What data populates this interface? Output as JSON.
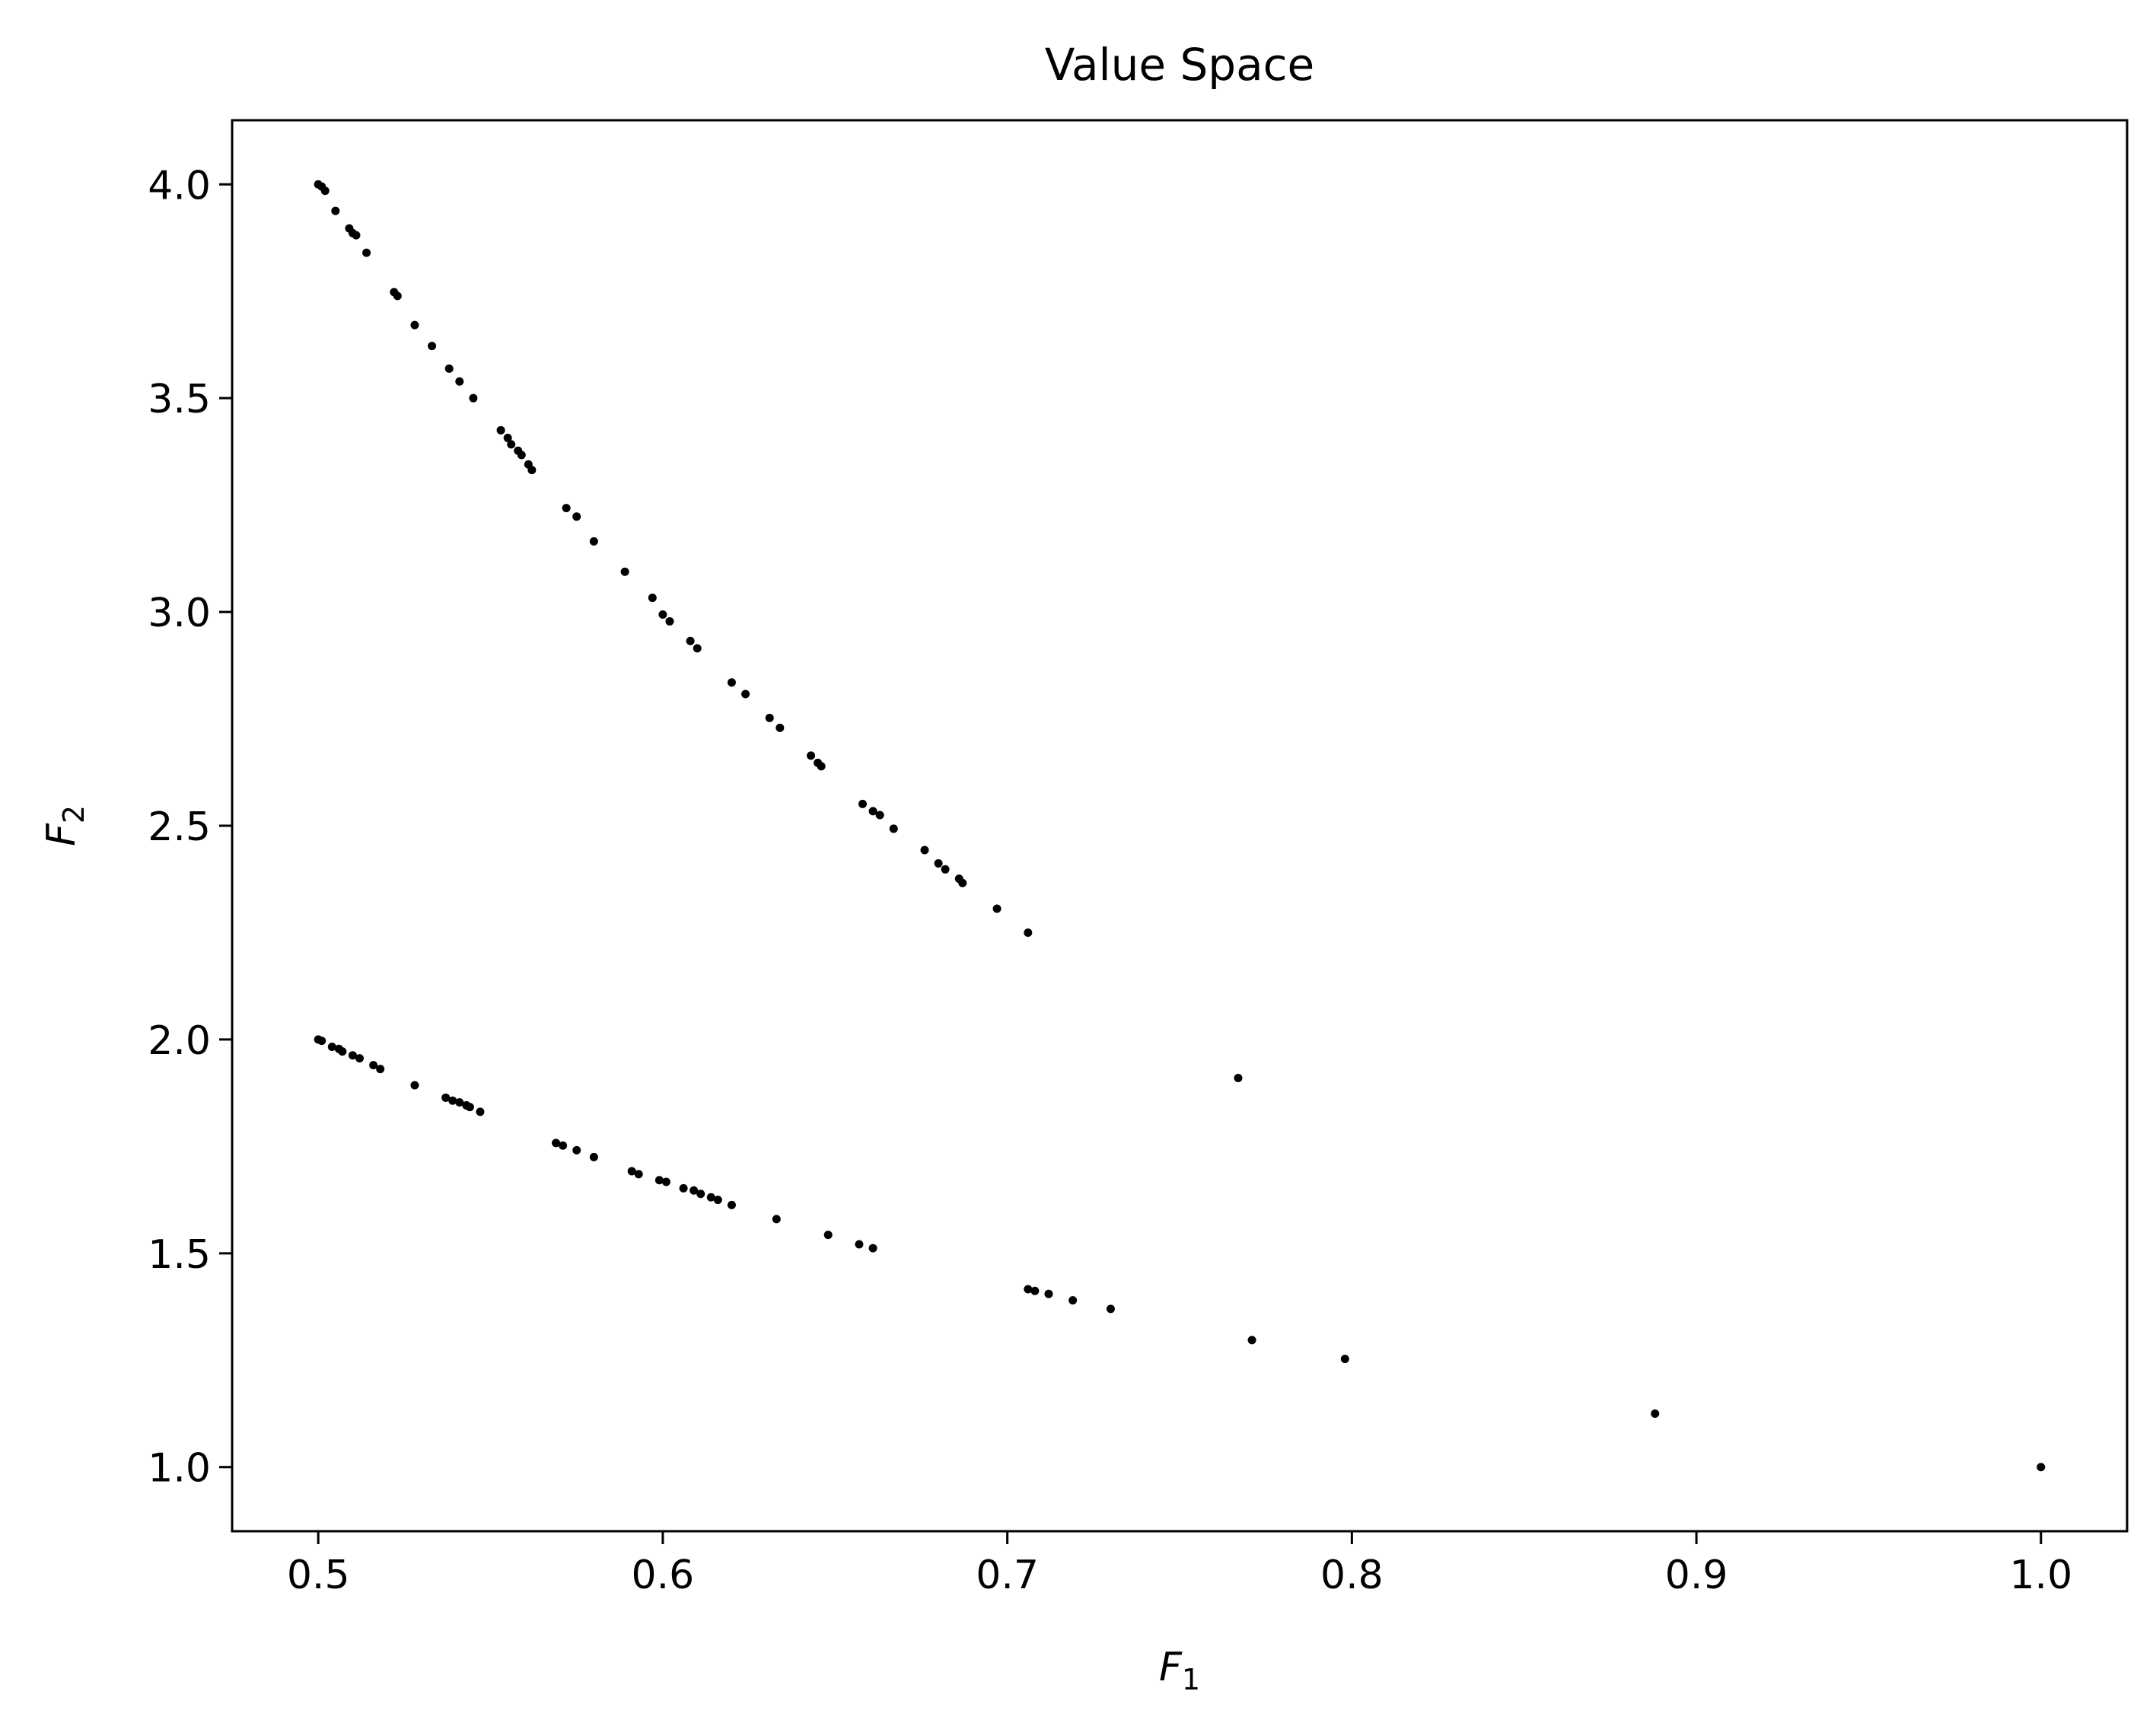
{
  "chart_data": {
    "type": "scatter",
    "title": "Value Space",
    "xlabel": "F",
    "xlabel_sub": "1",
    "ylabel": "F",
    "ylabel_sub": "2",
    "xlim": [
      0.475,
      1.025
    ],
    "ylim": [
      0.85,
      4.15
    ],
    "xticks": [
      {
        "value": 0.5,
        "label": "0.5"
      },
      {
        "value": 0.6,
        "label": "0.6"
      },
      {
        "value": 0.7,
        "label": "0.7"
      },
      {
        "value": 0.8,
        "label": "0.8"
      },
      {
        "value": 0.9,
        "label": "0.9"
      },
      {
        "value": 1.0,
        "label": "1.0"
      }
    ],
    "yticks": [
      {
        "value": 1.0,
        "label": "1.0"
      },
      {
        "value": 1.5,
        "label": "1.5"
      },
      {
        "value": 2.0,
        "label": "2.0"
      },
      {
        "value": 2.5,
        "label": "2.5"
      },
      {
        "value": 3.0,
        "label": "3.0"
      },
      {
        "value": 3.5,
        "label": "3.5"
      },
      {
        "value": 4.0,
        "label": "4.0"
      }
    ],
    "grid": false,
    "marker_color": "#000000",
    "series": [
      {
        "points": [
          [
            0.5,
            4.0
          ],
          [
            0.501,
            3.995
          ],
          [
            0.502,
            3.985
          ],
          [
            0.505,
            3.938
          ],
          [
            0.509,
            3.897
          ],
          [
            0.51,
            3.886
          ],
          [
            0.511,
            3.881
          ],
          [
            0.514,
            3.84
          ],
          [
            0.522,
            3.748
          ],
          [
            0.523,
            3.739
          ],
          [
            0.528,
            3.671
          ],
          [
            0.533,
            3.622
          ],
          [
            0.538,
            3.569
          ],
          [
            0.541,
            3.539
          ],
          [
            0.545,
            3.5
          ],
          [
            0.553,
            3.425
          ],
          [
            0.555,
            3.407
          ],
          [
            0.556,
            3.392
          ],
          [
            0.558,
            3.377
          ],
          [
            0.559,
            3.367
          ],
          [
            0.561,
            3.345
          ],
          [
            0.562,
            3.332
          ],
          [
            0.572,
            3.243
          ],
          [
            0.575,
            3.223
          ],
          [
            0.58,
            3.165
          ],
          [
            0.589,
            3.094
          ],
          [
            0.597,
            3.033
          ],
          [
            0.6,
            2.994
          ],
          [
            0.602,
            2.978
          ],
          [
            0.608,
            2.932
          ],
          [
            0.61,
            2.915
          ],
          [
            0.62,
            2.835
          ],
          [
            0.624,
            2.808
          ],
          [
            0.631,
            2.752
          ],
          [
            0.634,
            2.729
          ],
          [
            0.643,
            2.664
          ],
          [
            0.645,
            2.647
          ],
          [
            0.646,
            2.639
          ],
          [
            0.658,
            2.551
          ],
          [
            0.661,
            2.534
          ],
          [
            0.663,
            2.525
          ],
          [
            0.667,
            2.493
          ],
          [
            0.676,
            2.443
          ],
          [
            0.68,
            2.412
          ],
          [
            0.682,
            2.398
          ],
          [
            0.686,
            2.376
          ],
          [
            0.687,
            2.366
          ],
          [
            0.697,
            2.306
          ],
          [
            0.706,
            2.25
          ],
          [
            0.767,
            1.91
          ],
          [
            0.5,
            2.0
          ],
          [
            0.501,
            1.997
          ],
          [
            0.504,
            1.983
          ],
          [
            0.506,
            1.978
          ],
          [
            0.507,
            1.972
          ],
          [
            0.51,
            1.963
          ],
          [
            0.512,
            1.956
          ],
          [
            0.516,
            1.94
          ],
          [
            0.518,
            1.931
          ],
          [
            0.528,
            1.893
          ],
          [
            0.537,
            1.864
          ],
          [
            0.539,
            1.857
          ],
          [
            0.541,
            1.853
          ],
          [
            0.543,
            1.846
          ],
          [
            0.544,
            1.842
          ],
          [
            0.547,
            1.831
          ],
          [
            0.569,
            1.758
          ],
          [
            0.571,
            1.752
          ],
          [
            0.575,
            1.741
          ],
          [
            0.58,
            1.725
          ],
          [
            0.591,
            1.692
          ],
          [
            0.593,
            1.685
          ],
          [
            0.599,
            1.671
          ],
          [
            0.601,
            1.667
          ],
          [
            0.606,
            1.652
          ],
          [
            0.609,
            1.647
          ],
          [
            0.611,
            1.639
          ],
          [
            0.614,
            1.631
          ],
          [
            0.616,
            1.625
          ],
          [
            0.62,
            1.613
          ],
          [
            0.633,
            1.58
          ],
          [
            0.648,
            1.543
          ],
          [
            0.657,
            1.521
          ],
          [
            0.661,
            1.512
          ],
          [
            0.706,
            1.416
          ],
          [
            0.708,
            1.412
          ],
          [
            0.712,
            1.405
          ],
          [
            0.719,
            1.39
          ],
          [
            0.73,
            1.37
          ],
          [
            0.771,
            1.297
          ],
          [
            0.798,
            1.253
          ],
          [
            0.888,
            1.125
          ],
          [
            1.0,
            1.0
          ]
        ]
      }
    ]
  }
}
